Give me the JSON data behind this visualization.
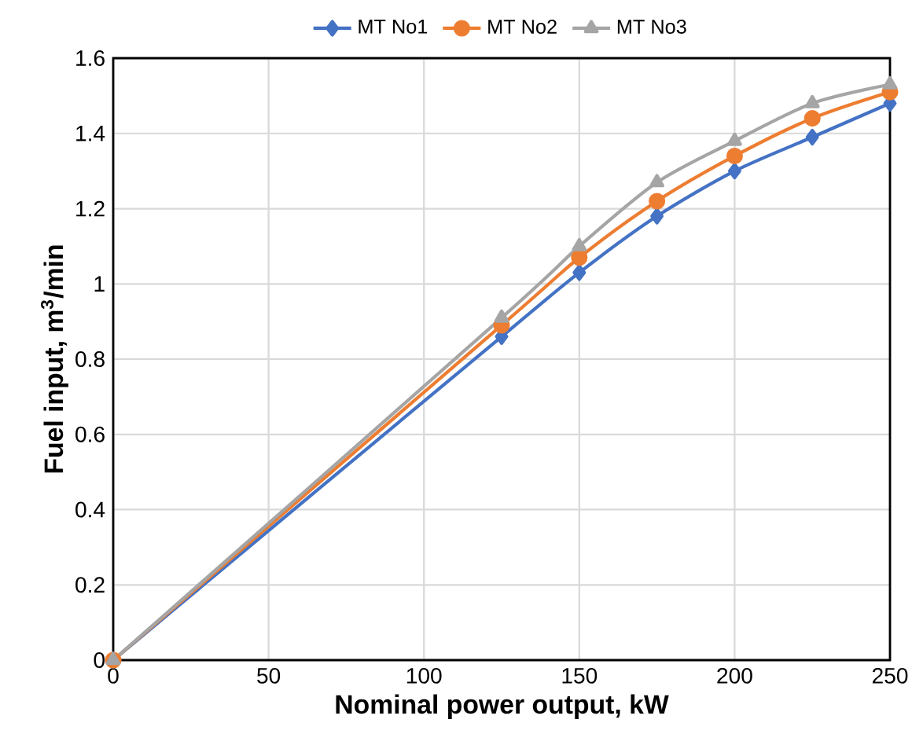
{
  "chart_data": {
    "type": "line",
    "xlabel": "Nominal power output, kW",
    "ylabel": "Fuel input, m$^{3}$/min",
    "x": [
      0,
      125,
      150,
      175,
      200,
      225,
      250
    ],
    "series": [
      {
        "name": "MT No1",
        "color": "#4472c4",
        "marker": "diamond",
        "values": [
          0,
          0.86,
          1.03,
          1.18,
          1.3,
          1.39,
          1.48
        ]
      },
      {
        "name": "MT No2",
        "color": "#ed7d31",
        "marker": "circle",
        "values": [
          0,
          0.89,
          1.07,
          1.22,
          1.34,
          1.44,
          1.51
        ]
      },
      {
        "name": "MT No3",
        "color": "#a5a5a5",
        "marker": "triangle",
        "values": [
          0,
          0.91,
          1.1,
          1.27,
          1.38,
          1.48,
          1.53
        ]
      }
    ],
    "xlim": [
      0,
      250
    ],
    "xticks": [
      0,
      50,
      100,
      150,
      200,
      250
    ],
    "ylim": [
      0,
      1.6
    ],
    "yticks": [
      0,
      0.2,
      0.4,
      0.6,
      0.8,
      1,
      1.2,
      1.4,
      1.6
    ],
    "grid": true,
    "legend": "top"
  }
}
